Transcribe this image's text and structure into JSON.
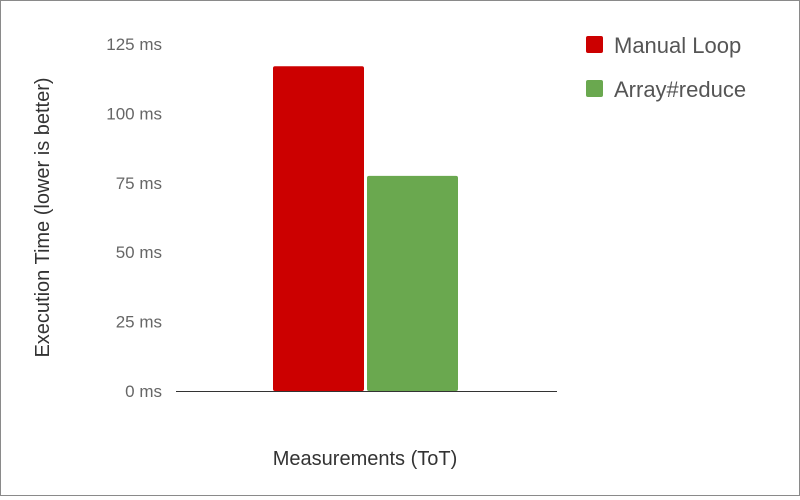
{
  "chart_data": {
    "type": "bar",
    "categories": [
      "Measurements (ToT)"
    ],
    "xlabel": "Measurements (ToT)",
    "ylabel": "Execution Time (lower is better)",
    "ylim": [
      0,
      125
    ],
    "yticks": [
      0,
      25,
      50,
      75,
      100,
      125
    ],
    "ytick_labels": [
      "0 ms",
      "25 ms",
      "50 ms",
      "75 ms",
      "100 ms",
      "125 ms"
    ],
    "grid": false,
    "legend_position": "top-right",
    "series": [
      {
        "name": "Manual Loop",
        "values": [
          117
        ],
        "color": "#cc0000"
      },
      {
        "name": "Array#reduce",
        "values": [
          77.5
        ],
        "color": "#6aa84f"
      }
    ]
  }
}
